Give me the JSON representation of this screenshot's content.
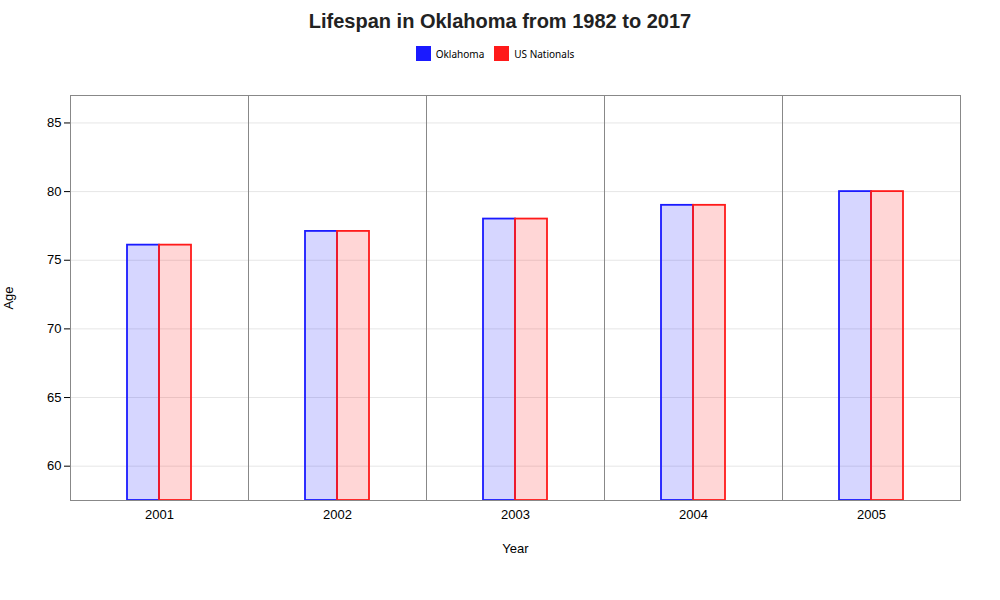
{
  "chart_data": {
    "type": "bar",
    "title": "Lifespan in Oklahoma from 1982 to 2017",
    "xlabel": "Year",
    "ylabel": "Age",
    "categories": [
      "2001",
      "2002",
      "2003",
      "2004",
      "2005"
    ],
    "series": [
      {
        "name": "Oklahoma",
        "color": "#1a1aff",
        "values": [
          76.1,
          77.1,
          78.0,
          79.0,
          80.0
        ]
      },
      {
        "name": "US Nationals",
        "color": "#ff1a1a",
        "values": [
          76.1,
          77.1,
          78.0,
          79.0,
          80.0
        ]
      }
    ],
    "ylim": [
      57.5,
      87
    ],
    "yticks": [
      60,
      65,
      70,
      75,
      80,
      85
    ],
    "grid": true,
    "legend": "upper center"
  }
}
